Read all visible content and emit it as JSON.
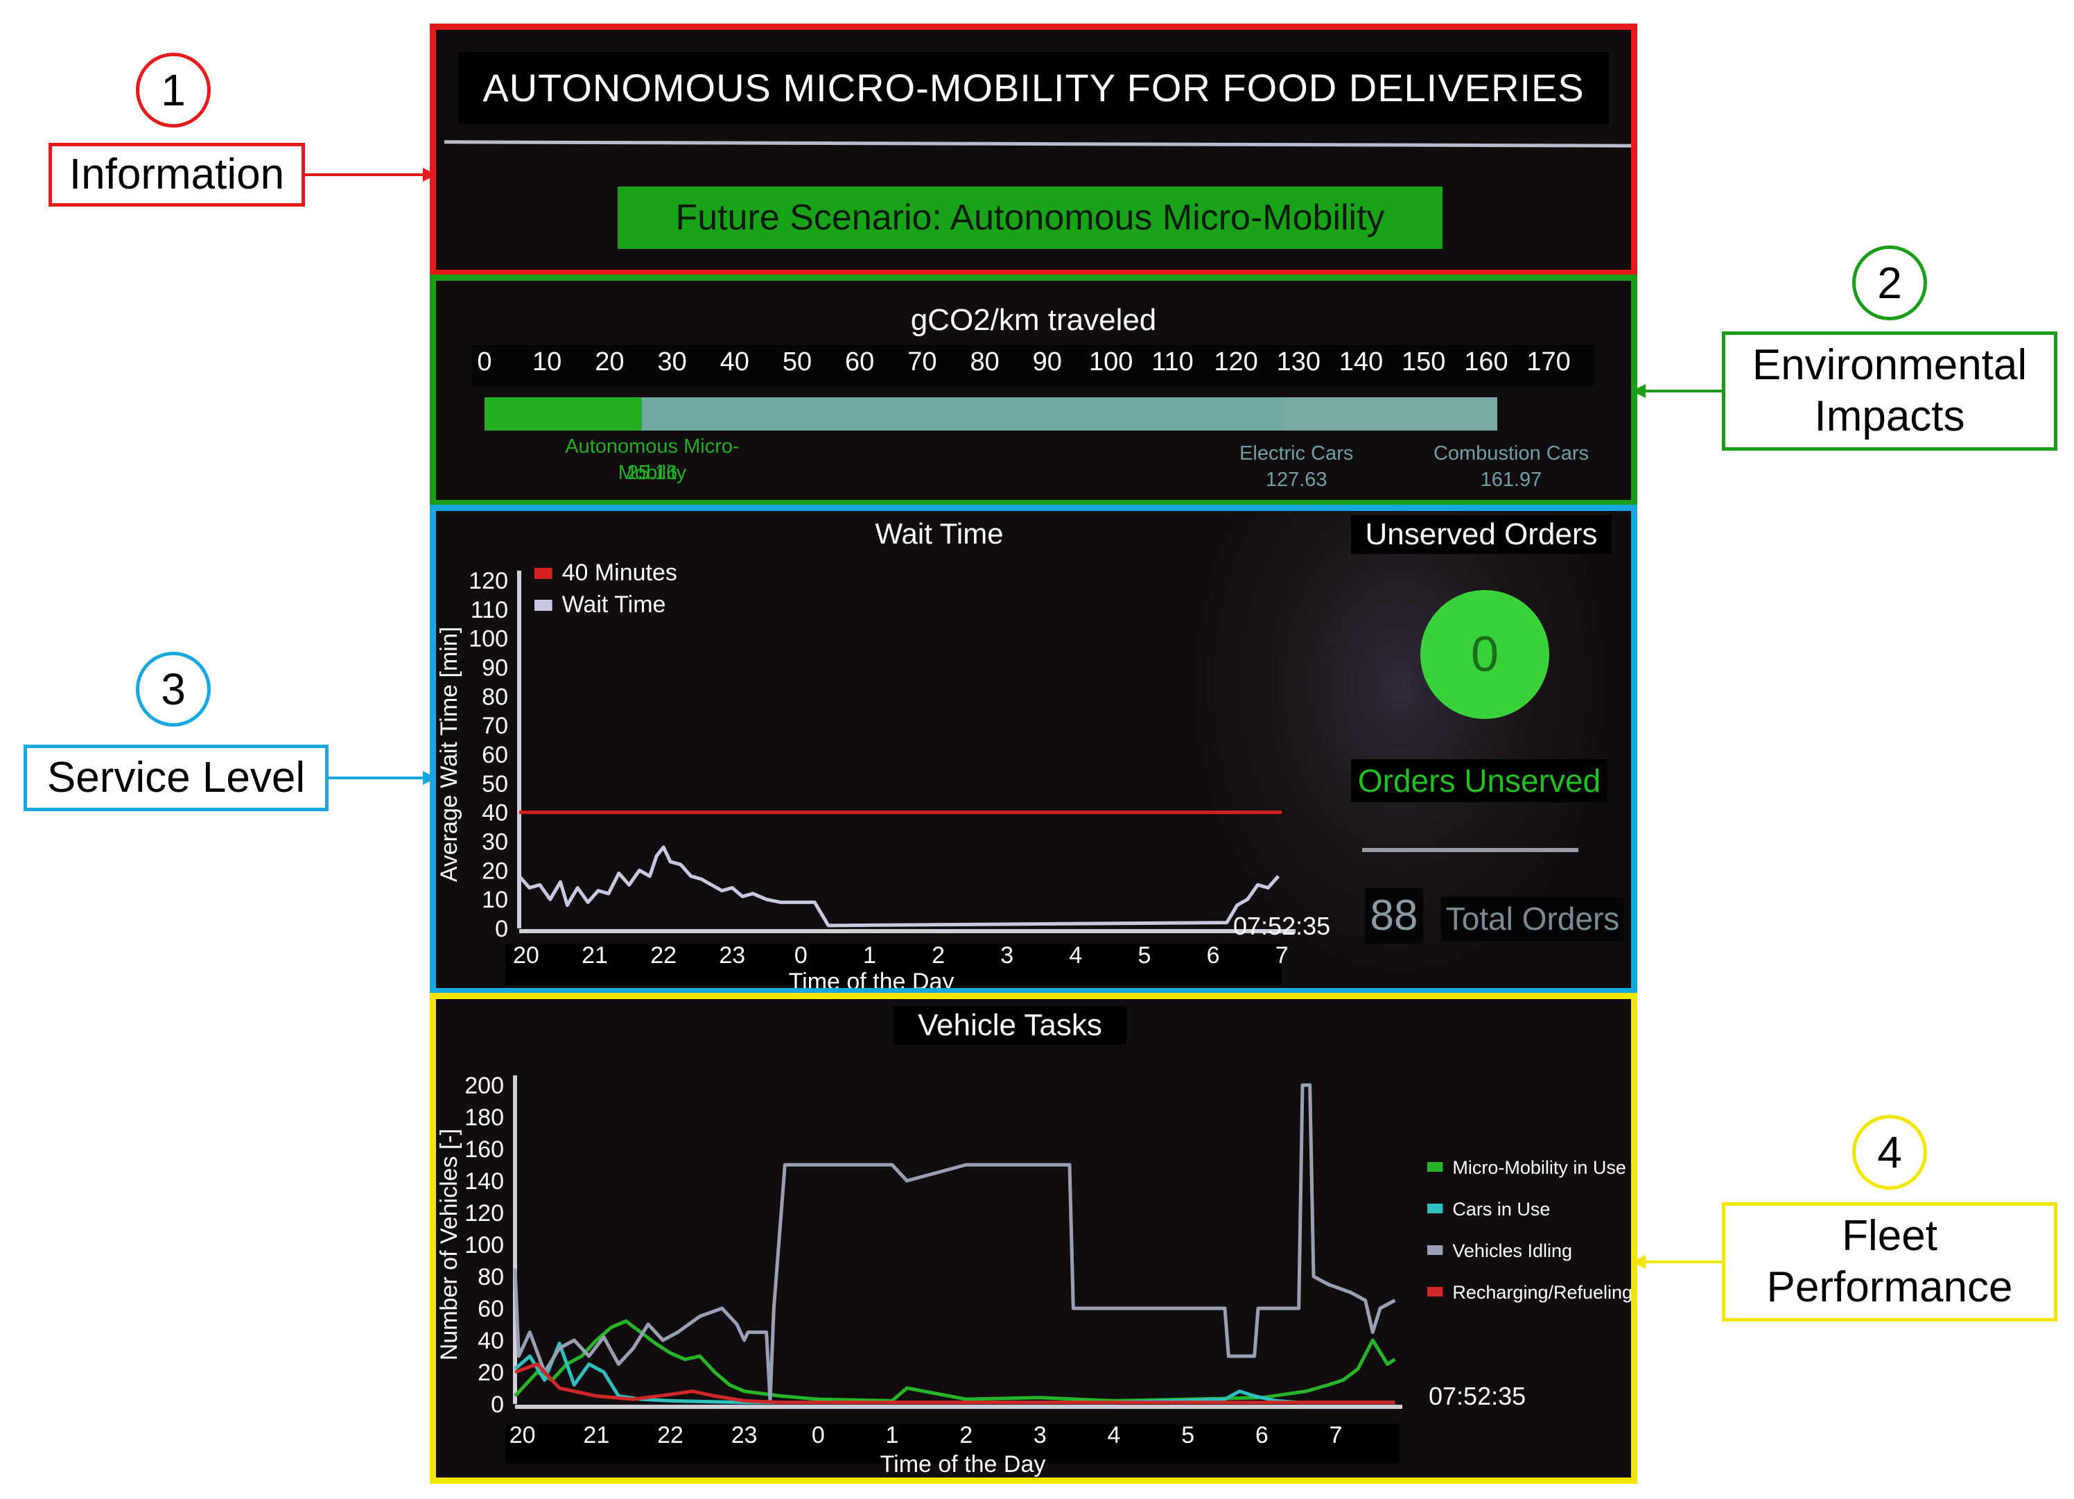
{
  "callouts": [
    {
      "number": "1",
      "label": "Information",
      "color": "#e51b1b"
    },
    {
      "number": "2",
      "label": "Environmental Impacts",
      "label_lines": [
        "Environmental",
        "Impacts"
      ],
      "color": "#1a9e1a"
    },
    {
      "number": "3",
      "label": "Service Level",
      "color": "#19a7e0"
    },
    {
      "number": "4",
      "label": "Fleet Performance",
      "label_lines": [
        "Fleet",
        "Performance"
      ],
      "color": "#f2e600"
    }
  ],
  "information": {
    "title": "AUTONOMOUS MICRO-MOBILITY FOR FOOD DELIVERIES",
    "scenario": "Future Scenario: Autonomous Micro-Mobility",
    "scenario_color": "#18a318"
  },
  "environmental": {
    "title": "gCO2/km traveled",
    "scale_ticks": [
      "0",
      "10",
      "20",
      "30",
      "40",
      "50",
      "60",
      "70",
      "80",
      "90",
      "100",
      "110",
      "120",
      "130",
      "140",
      "150",
      "160",
      "170"
    ],
    "scale_max": 170,
    "bars": [
      {
        "label": "Autonomous Micro-Mobility",
        "value_text": "25.16",
        "value": 25.16,
        "color": "#22b022"
      },
      {
        "label": "Electric Cars",
        "value_text": "127.63",
        "value": 127.63,
        "color": "#6fa8a0"
      },
      {
        "label": "Combustion Cars",
        "value_text": "161.97",
        "value": 161.97,
        "color": "#7aa9a2"
      }
    ]
  },
  "service": {
    "wait_title": "Wait Time",
    "unserved_title": "Unserved Orders",
    "unserved_count": "0",
    "unserved_label": "Orders Unserved",
    "total_orders": "88",
    "total_label": "Total Orders",
    "clock": "07:52:35"
  },
  "fleet": {
    "title": "Vehicle Tasks",
    "clock": "07:52:35"
  },
  "chart_data": [
    {
      "type": "line",
      "title": "Wait Time",
      "xlabel": "Time of the Day",
      "ylabel": "Average Wait Time [min]",
      "x_ticks": [
        "20",
        "21",
        "22",
        "23",
        "0",
        "1",
        "2",
        "3",
        "4",
        "5",
        "6",
        "7"
      ],
      "y_ticks": [
        "0",
        "10",
        "20",
        "30",
        "40",
        "50",
        "60",
        "70",
        "80",
        "90",
        "100",
        "110",
        "120"
      ],
      "ylim": [
        0,
        120
      ],
      "xlim": [
        19.9,
        31.2
      ],
      "legend_position": "top-left",
      "series": [
        {
          "name": "40 Minutes",
          "color": "#d42020",
          "x": [
            19.9,
            31.0
          ],
          "y": [
            40,
            40
          ]
        },
        {
          "name": "Wait Time",
          "color": "#c8c8e0",
          "x": [
            19.9,
            20.05,
            20.2,
            20.35,
            20.5,
            20.6,
            20.75,
            20.9,
            21.05,
            21.2,
            21.35,
            21.5,
            21.65,
            21.8,
            21.9,
            22.0,
            22.1,
            22.25,
            22.4,
            22.55,
            22.7,
            22.85,
            23.0,
            23.15,
            23.3,
            23.5,
            23.7,
            23.9,
            24.2,
            24.4,
            30.2,
            30.35,
            30.5,
            30.65,
            30.8,
            30.95
          ],
          "y": [
            18,
            14,
            15,
            10,
            16,
            8,
            14,
            9,
            13,
            12,
            19,
            15,
            20,
            18,
            25,
            28,
            23,
            22,
            18,
            17,
            15,
            13,
            14,
            11,
            12,
            10,
            9,
            9,
            9,
            1,
            2,
            8,
            10,
            15,
            14,
            18
          ]
        }
      ]
    },
    {
      "type": "line",
      "title": "Vehicle Tasks",
      "xlabel": "Time of the Day",
      "ylabel": "Number of Vehicles [-]",
      "x_ticks": [
        "20",
        "21",
        "22",
        "23",
        "0",
        "1",
        "2",
        "3",
        "4",
        "5",
        "6",
        "7"
      ],
      "y_ticks": [
        "0",
        "20",
        "40",
        "60",
        "80",
        "100",
        "120",
        "140",
        "160",
        "180",
        "200"
      ],
      "ylim": [
        0,
        200
      ],
      "xlim": [
        19.9,
        31.9
      ],
      "legend_position": "right",
      "series": [
        {
          "name": "Micro-Mobility in Use",
          "color": "#28b428",
          "x": [
            19.9,
            20.2,
            20.4,
            20.6,
            20.8,
            21.0,
            21.2,
            21.4,
            21.6,
            21.8,
            22.0,
            22.2,
            22.4,
            22.6,
            22.8,
            23.0,
            23.5,
            24.0,
            25.0,
            25.2,
            26.0,
            27.0,
            28.0,
            29.0,
            30.0,
            30.3,
            30.6,
            30.9,
            31.1,
            31.3,
            31.5,
            31.7,
            31.8
          ],
          "y": [
            5,
            20,
            15,
            25,
            30,
            40,
            48,
            52,
            45,
            38,
            32,
            28,
            30,
            20,
            12,
            8,
            5,
            3,
            2,
            10,
            3,
            4,
            2,
            3,
            4,
            6,
            8,
            12,
            15,
            22,
            40,
            25,
            28
          ]
        },
        {
          "name": "Cars in Use",
          "color": "#2fbfbf",
          "x": [
            19.9,
            20.1,
            20.3,
            20.5,
            20.7,
            20.9,
            21.1,
            21.3,
            21.6,
            22.0,
            23.0,
            25.0,
            28.0,
            29.5,
            29.7,
            29.9,
            30.2,
            30.5,
            31.0,
            31.8
          ],
          "y": [
            22,
            30,
            15,
            38,
            12,
            25,
            20,
            5,
            3,
            2,
            1,
            1,
            1,
            3,
            8,
            5,
            2,
            1,
            1,
            1
          ]
        },
        {
          "name": "Vehicles Idling",
          "color": "#9aa0b4",
          "x": [
            19.9,
            19.95,
            20.1,
            20.3,
            20.5,
            20.7,
            20.9,
            21.1,
            21.3,
            21.5,
            21.7,
            21.9,
            22.1,
            22.4,
            22.7,
            22.9,
            23.0,
            23.05,
            23.3,
            23.35,
            23.4,
            23.55,
            24.0,
            24.4,
            25.0,
            25.2,
            26.0,
            27.0,
            27.4,
            27.45,
            28.0,
            29.0,
            29.5,
            29.55,
            29.9,
            29.95,
            30.2,
            30.5,
            30.55,
            30.65,
            30.7,
            30.9,
            31.2,
            31.4,
            31.5,
            31.6,
            31.8
          ],
          "y": [
            85,
            30,
            45,
            20,
            35,
            40,
            30,
            42,
            25,
            35,
            50,
            40,
            45,
            55,
            60,
            50,
            40,
            45,
            45,
            2,
            60,
            150,
            150,
            150,
            150,
            140,
            150,
            150,
            150,
            60,
            60,
            60,
            60,
            30,
            30,
            60,
            60,
            60,
            200,
            200,
            80,
            75,
            70,
            65,
            45,
            60,
            65
          ]
        },
        {
          "name": "Recharging/Refueling",
          "color": "#d02828",
          "x": [
            19.9,
            20.2,
            20.5,
            21.0,
            21.5,
            22.0,
            22.3,
            22.6,
            23.0,
            23.5,
            24.0,
            26.0,
            28.0,
            30.0,
            31.8
          ],
          "y": [
            20,
            25,
            10,
            5,
            3,
            6,
            8,
            5,
            2,
            1,
            1,
            1,
            1,
            1,
            1
          ]
        }
      ]
    }
  ]
}
